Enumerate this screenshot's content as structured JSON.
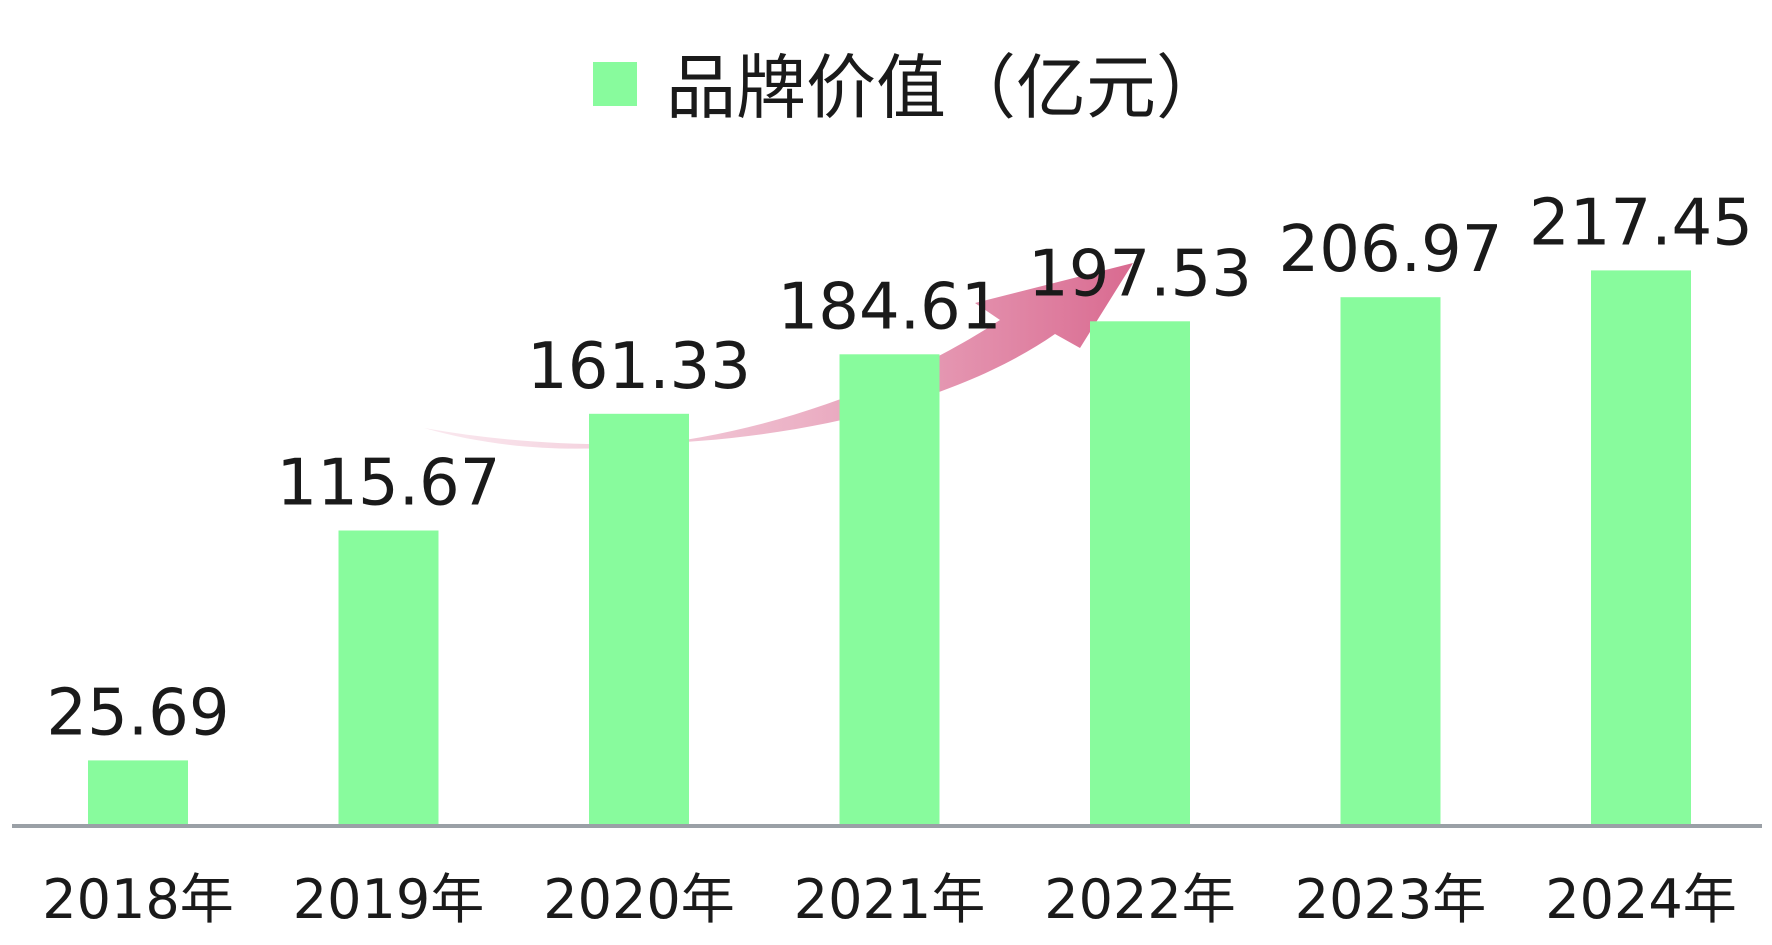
{
  "chart_data": {
    "type": "bar",
    "categories": [
      "2018年",
      "2019年",
      "2020年",
      "2021年",
      "2022年",
      "2023年",
      "2024年"
    ],
    "series": [
      {
        "name": "品牌价值（亿元）",
        "values": [
          25.69,
          115.67,
          161.33,
          184.61,
          197.53,
          206.97,
          217.45
        ]
      }
    ],
    "data_labels": [
      "25.69",
      "115.67",
      "161.33",
      "184.61",
      "197.53",
      "206.97",
      "217.45"
    ],
    "ylim": [
      0,
      245
    ],
    "grid": false,
    "legend": {
      "position": "top-center"
    },
    "colors": {
      "bar": "#88fb9d",
      "axis": "#9aa0a6",
      "arrow_start": "#f6d6e2",
      "arrow_end": "#d96a90",
      "text": "#1a1a1a"
    },
    "decorations": [
      "upward-trend-arrow"
    ]
  }
}
